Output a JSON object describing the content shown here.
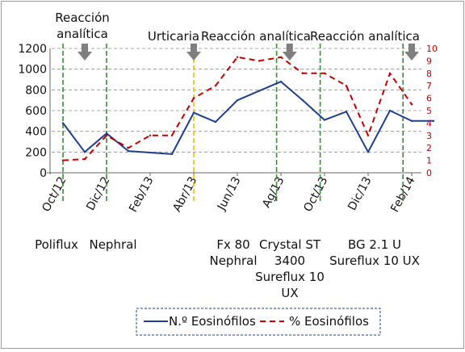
{
  "chart_data": {
    "type": "line",
    "x": [
      "Oct/12",
      "Dic/12",
      "Feb/13",
      "Abr/13",
      "Jun/13",
      "Ag/13",
      "Oct/13",
      "Dic/13",
      "Feb/14"
    ],
    "y_left_ticks": [
      "0",
      "200",
      "400",
      "600",
      "800",
      "1000",
      "1200"
    ],
    "y_left_range": [
      0,
      1200
    ],
    "y_right_ticks": [
      "0",
      "1",
      "2",
      "3",
      "4",
      "5",
      "6",
      "7",
      "8",
      "9",
      "10"
    ],
    "y_right_range": [
      0,
      10
    ],
    "grid": "horizontal dashed",
    "legend_position": "bottom",
    "series": [
      {
        "name": "N.º Eosinófilos",
        "axis": "left",
        "color": "#1f3e8c",
        "style": "solid",
        "x": [
          0,
          0.5,
          1,
          1.5,
          2.5,
          3,
          3.5,
          4,
          4.5,
          5,
          5.5,
          6,
          6.5,
          7,
          7.5,
          8,
          8.5
        ],
        "values": [
          480,
          200,
          380,
          210,
          180,
          580,
          490,
          700,
          790,
          880,
          700,
          510,
          590,
          200,
          600,
          500,
          500
        ]
      },
      {
        "name": "% Eosinófilos",
        "axis": "right",
        "color": "#c00000",
        "style": "dashed",
        "x": [
          0,
          0.5,
          1,
          1.5,
          2,
          2.5,
          3,
          3.5,
          4,
          4.5,
          5,
          5.5,
          6,
          6.5,
          7,
          7.5,
          8
        ],
        "values": [
          1,
          1.1,
          3,
          2,
          3,
          3,
          6,
          7,
          9.3,
          9,
          9.3,
          8,
          8,
          7,
          3,
          8,
          5.5
        ]
      }
    ],
    "vlines": [
      {
        "x": 0,
        "color": "#3a8a3a"
      },
      {
        "x": 1,
        "color": "#3a8a3a"
      },
      {
        "x": 3,
        "color": "#e8c000"
      },
      {
        "x": 4.9,
        "color": "#3a8a3a"
      },
      {
        "x": 5.9,
        "color": "#3a8a3a"
      },
      {
        "x": 7.8,
        "color": "#3a8a3a"
      }
    ],
    "events_top": [
      {
        "lines": [
          "Reacción",
          "analítica"
        ],
        "arrow_x": 0.5
      },
      {
        "lines": [
          "Urticaria"
        ],
        "arrow_x": 3
      },
      {
        "lines": [
          "Reacción analítica"
        ],
        "arrow_x": 5.2
      },
      {
        "lines": [
          "Reacción analítica"
        ],
        "arrow_x": 8
      }
    ],
    "events_bottom": [
      {
        "lines": [
          "Poliflux"
        ]
      },
      {
        "lines": [
          "Nephral"
        ]
      },
      {
        "lines": [
          "Fx 80",
          "Nephral"
        ]
      },
      {
        "lines": [
          "Crystal ST",
          "3400",
          "Sureflux 10",
          "UX"
        ]
      },
      {
        "lines": [
          "BG 2.1 U",
          "Sureflux 10 UX"
        ]
      }
    ]
  }
}
